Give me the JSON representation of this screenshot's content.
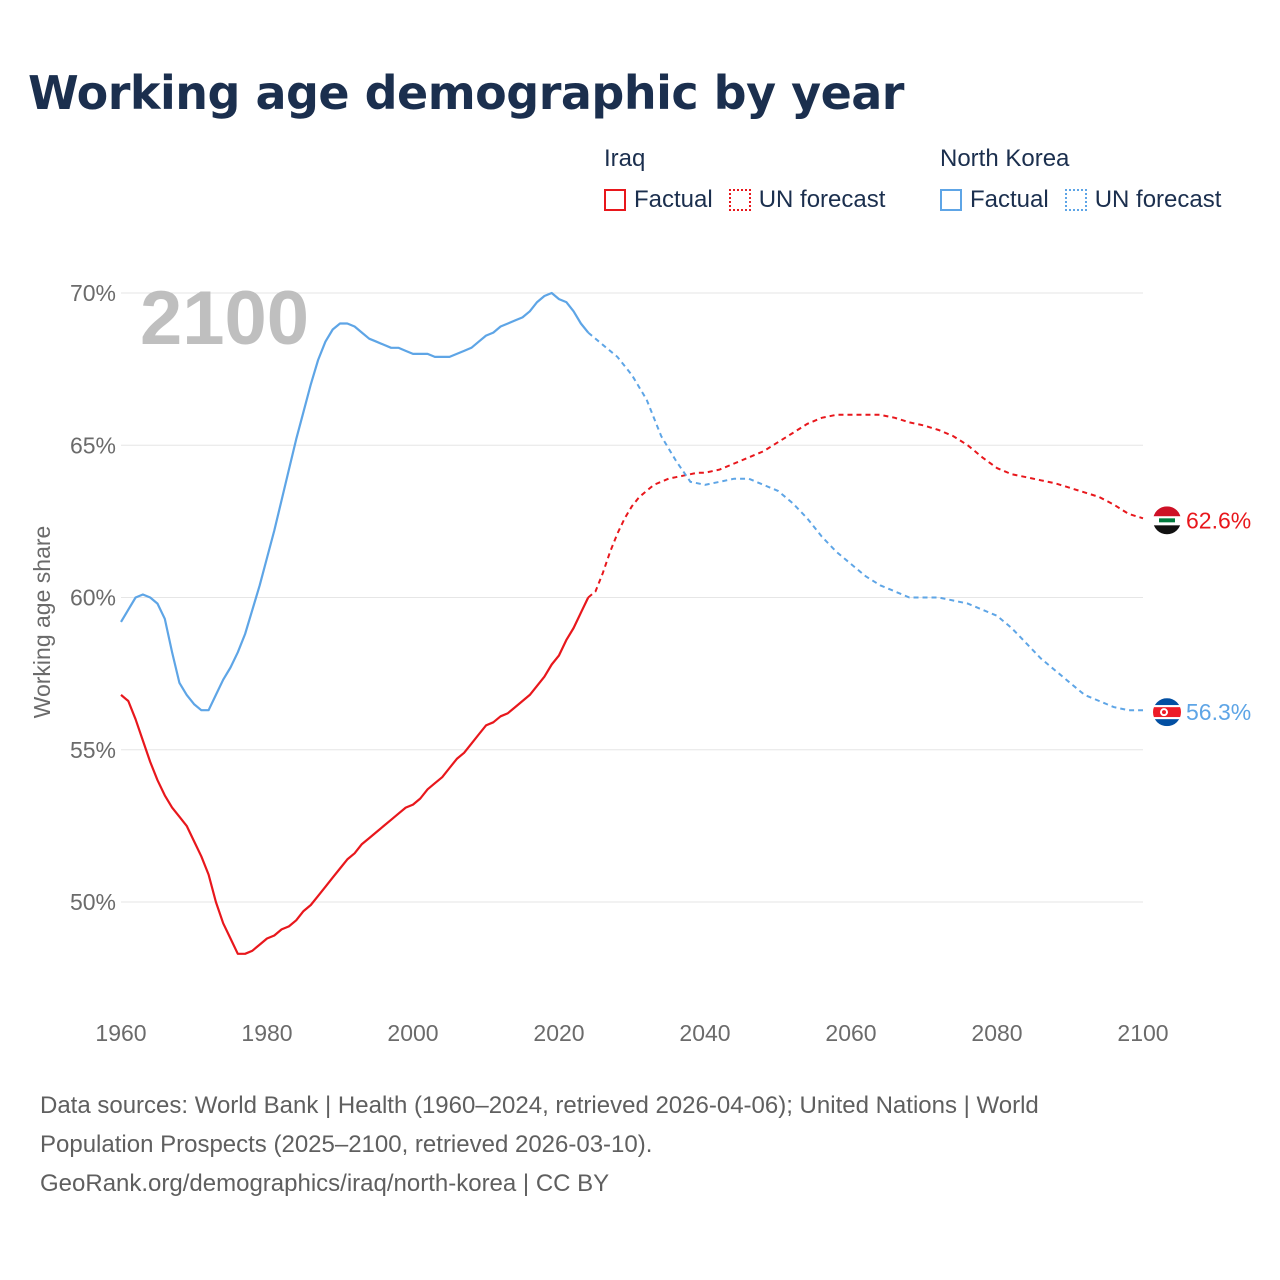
{
  "title": "Working age demographic by year",
  "legend": {
    "iraq": {
      "country": "Iraq",
      "factual": "Factual",
      "forecast": "UN forecast",
      "color": "#e8171c"
    },
    "north_korea": {
      "country": "North Korea",
      "factual": "Factual",
      "forecast": "UN forecast",
      "color": "#5ea5e6"
    }
  },
  "footer": {
    "line1": "Data sources: World Bank | Health (1960–2024, retrieved 2026-04-06); United Nations | World",
    "line2": "Population Prospects (2025–2100, retrieved 2026-03-10).",
    "line3": "GeoRank.org/demographics/iraq/north-korea | CC BY"
  },
  "chart_data": {
    "type": "line",
    "title": "Working age demographic by year",
    "xlabel": "",
    "ylabel": "Working age share",
    "year_display": "2100",
    "xlim": [
      1960,
      2100
    ],
    "ylim": [
      47,
      70
    ],
    "x_ticks": [
      1960,
      1980,
      2000,
      2020,
      2040,
      2060,
      2080,
      2100
    ],
    "x_tick_labels": [
      "1960",
      "1980",
      "2000",
      "2020",
      "2040",
      "2060",
      "2080",
      "2100"
    ],
    "y_ticks": [
      50,
      55,
      60,
      65,
      70
    ],
    "y_tick_labels": [
      "50%",
      "55%",
      "60%",
      "65%",
      "70%"
    ],
    "grid": true,
    "series": [
      {
        "name": "Iraq",
        "key": "iraq",
        "color": "#e8171c",
        "end_label": "62.6%",
        "factual_x": [
          1960,
          1961,
          1962,
          1963,
          1964,
          1965,
          1966,
          1967,
          1968,
          1969,
          1970,
          1971,
          1972,
          1973,
          1974,
          1975,
          1976,
          1977,
          1978,
          1979,
          1980,
          1981,
          1982,
          1983,
          1984,
          1985,
          1986,
          1987,
          1988,
          1989,
          1990,
          1991,
          1992,
          1993,
          1994,
          1995,
          1996,
          1997,
          1998,
          1999,
          2000,
          2001,
          2002,
          2003,
          2004,
          2005,
          2006,
          2007,
          2008,
          2009,
          2010,
          2011,
          2012,
          2013,
          2014,
          2015,
          2016,
          2017,
          2018,
          2019,
          2020,
          2021,
          2022,
          2023,
          2024
        ],
        "factual_y": [
          56.8,
          56.6,
          56.0,
          55.3,
          54.6,
          54.0,
          53.5,
          53.1,
          52.8,
          52.5,
          52.0,
          51.5,
          50.9,
          50.0,
          49.3,
          48.8,
          48.3,
          48.3,
          48.4,
          48.6,
          48.8,
          48.9,
          49.1,
          49.2,
          49.4,
          49.7,
          49.9,
          50.2,
          50.5,
          50.8,
          51.1,
          51.4,
          51.6,
          51.9,
          52.1,
          52.3,
          52.5,
          52.7,
          52.9,
          53.1,
          53.2,
          53.4,
          53.7,
          53.9,
          54.1,
          54.4,
          54.7,
          54.9,
          55.2,
          55.5,
          55.8,
          55.9,
          56.1,
          56.2,
          56.4,
          56.6,
          56.8,
          57.1,
          57.4,
          57.8,
          58.1,
          58.6,
          59.0,
          59.5,
          60.0
        ],
        "forecast_x": [
          2024,
          2025,
          2026,
          2027,
          2028,
          2029,
          2030,
          2031,
          2032,
          2033,
          2034,
          2035,
          2036,
          2037,
          2038,
          2039,
          2040,
          2042,
          2044,
          2046,
          2048,
          2050,
          2052,
          2054,
          2056,
          2058,
          2060,
          2062,
          2064,
          2066,
          2068,
          2070,
          2072,
          2074,
          2076,
          2078,
          2080,
          2082,
          2084,
          2086,
          2088,
          2090,
          2092,
          2094,
          2096,
          2098,
          2100
        ],
        "forecast_y": [
          60.0,
          60.2,
          60.8,
          61.5,
          62.1,
          62.6,
          63.0,
          63.3,
          63.5,
          63.7,
          63.8,
          63.9,
          63.95,
          64.0,
          64.05,
          64.1,
          64.1,
          64.2,
          64.4,
          64.6,
          64.8,
          65.1,
          65.4,
          65.7,
          65.9,
          66.0,
          66.0,
          66.0,
          66.0,
          65.9,
          65.75,
          65.65,
          65.5,
          65.3,
          65.0,
          64.6,
          64.25,
          64.05,
          63.95,
          63.85,
          63.75,
          63.6,
          63.45,
          63.3,
          63.05,
          62.75,
          62.6
        ]
      },
      {
        "name": "North Korea",
        "key": "north_korea",
        "color": "#5ea5e6",
        "end_label": "56.3%",
        "factual_x": [
          1960,
          1961,
          1962,
          1963,
          1964,
          1965,
          1966,
          1967,
          1968,
          1969,
          1970,
          1971,
          1972,
          1973,
          1974,
          1975,
          1976,
          1977,
          1978,
          1979,
          1980,
          1981,
          1982,
          1983,
          1984,
          1985,
          1986,
          1987,
          1988,
          1989,
          1990,
          1991,
          1992,
          1993,
          1994,
          1995,
          1996,
          1997,
          1998,
          1999,
          2000,
          2001,
          2002,
          2003,
          2004,
          2005,
          2006,
          2007,
          2008,
          2009,
          2010,
          2011,
          2012,
          2013,
          2014,
          2015,
          2016,
          2017,
          2018,
          2019,
          2020,
          2021,
          2022,
          2023,
          2024
        ],
        "factual_y": [
          59.2,
          59.6,
          60.0,
          60.1,
          60.0,
          59.8,
          59.3,
          58.2,
          57.2,
          56.8,
          56.5,
          56.3,
          56.3,
          56.8,
          57.3,
          57.7,
          58.2,
          58.8,
          59.6,
          60.4,
          61.3,
          62.2,
          63.2,
          64.2,
          65.2,
          66.1,
          67.0,
          67.8,
          68.4,
          68.8,
          69.0,
          69.0,
          68.9,
          68.7,
          68.5,
          68.4,
          68.3,
          68.2,
          68.2,
          68.1,
          68.0,
          68.0,
          68.0,
          67.9,
          67.9,
          67.9,
          68.0,
          68.1,
          68.2,
          68.4,
          68.6,
          68.7,
          68.9,
          69.0,
          69.1,
          69.2,
          69.4,
          69.7,
          69.9,
          70.0,
          69.8,
          69.7,
          69.4,
          69.0,
          68.7
        ],
        "forecast_x": [
          2024,
          2026,
          2028,
          2030,
          2032,
          2034,
          2036,
          2038,
          2040,
          2042,
          2044,
          2046,
          2048,
          2050,
          2052,
          2054,
          2056,
          2058,
          2060,
          2062,
          2064,
          2066,
          2068,
          2070,
          2072,
          2074,
          2076,
          2078,
          2080,
          2082,
          2084,
          2086,
          2088,
          2090,
          2092,
          2094,
          2096,
          2098,
          2100
        ],
        "forecast_y": [
          68.7,
          68.3,
          67.9,
          67.3,
          66.5,
          65.3,
          64.5,
          63.8,
          63.7,
          63.8,
          63.9,
          63.9,
          63.7,
          63.5,
          63.1,
          62.6,
          62.0,
          61.5,
          61.1,
          60.7,
          60.4,
          60.2,
          60.0,
          60.0,
          60.0,
          59.9,
          59.8,
          59.6,
          59.4,
          59.0,
          58.5,
          58.0,
          57.6,
          57.2,
          56.8,
          56.6,
          56.4,
          56.3,
          56.3
        ]
      }
    ]
  }
}
